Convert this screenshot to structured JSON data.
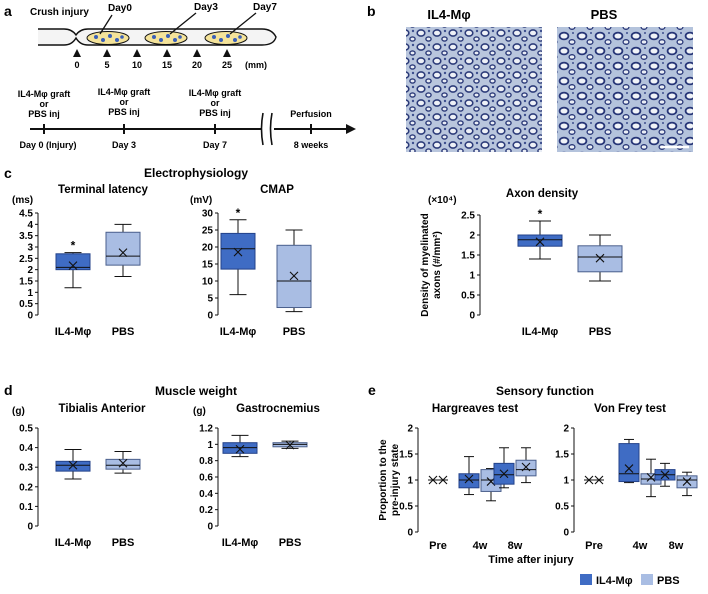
{
  "colors": {
    "il4": "#3f6cc4",
    "il4_edge": "#23428a",
    "pbs": "#a9bde3",
    "pbs_edge": "#4a5f8c",
    "axon_bg": "#b7c6de",
    "axon_ring": "#2f3f7e"
  },
  "panels": {
    "a": "a",
    "b": "b",
    "c": "c",
    "d": "d",
    "e": "e"
  },
  "timeline": {
    "crush_label": "Crush injury",
    "days": [
      "Day0",
      "Day3",
      "Day7"
    ],
    "mm_ticks": [
      "0",
      "5",
      "10",
      "15",
      "20",
      "25"
    ],
    "mm_unit": "(mm)",
    "events": [
      {
        "lines": [
          "IL4-Mφ graft",
          "or",
          "PBS inj"
        ],
        "day": "Day 0 (Injury)"
      },
      {
        "lines": [
          "IL4-Mφ graft",
          "or",
          "PBS inj"
        ],
        "day": "Day 3"
      },
      {
        "lines": [
          "IL4-Mφ graft",
          "or",
          "PBS inj"
        ],
        "day": "Day 7"
      },
      {
        "lines": [
          "Perfusion"
        ],
        "day": "8 weeks"
      }
    ]
  },
  "micro": {
    "left_title": "IL4-Mφ",
    "right_title": "PBS"
  },
  "sections": {
    "electro": "Electrophysiology",
    "muscle": "Muscle weight",
    "sensory": "Sensory function"
  },
  "legend": {
    "il4": "IL4-Mφ",
    "pbs": "PBS"
  },
  "chart_data": [
    {
      "id": "terminal_latency",
      "type": "box",
      "title": "Terminal latency",
      "ylabel": "(ms)",
      "ylim": [
        0,
        4.5
      ],
      "yticks": [
        "0",
        "0.5",
        "1",
        "1.5",
        "2",
        "2.5",
        "3",
        "3.5",
        "4",
        "4.5"
      ],
      "tick_values": [
        0,
        0.5,
        1,
        1.5,
        2,
        2.5,
        3,
        3.5,
        4,
        4.5
      ],
      "categories": [
        "IL4-Mφ",
        "PBS"
      ],
      "boxes": [
        {
          "group": "IL4-Mφ",
          "min": 1.2,
          "q1": 2.0,
          "median": 2.1,
          "q3": 2.7,
          "max": 2.75,
          "mean": 2.18,
          "sig": "*"
        },
        {
          "group": "PBS",
          "min": 1.7,
          "q1": 2.2,
          "median": 2.6,
          "q3": 3.65,
          "max": 4.0,
          "mean": 2.75
        }
      ]
    },
    {
      "id": "cmap",
      "type": "box",
      "title": "CMAP",
      "ylabel": "(mV)",
      "ylim": [
        0,
        30
      ],
      "yticks": [
        "0",
        "5",
        "10",
        "15",
        "20",
        "25",
        "30"
      ],
      "tick_values": [
        0,
        5,
        10,
        15,
        20,
        25,
        30
      ],
      "categories": [
        "IL4-Mφ",
        "PBS"
      ],
      "boxes": [
        {
          "group": "IL4-Mφ",
          "min": 6,
          "q1": 13.5,
          "median": 19.5,
          "q3": 24,
          "max": 28,
          "mean": 18.5,
          "sig": "*"
        },
        {
          "group": "PBS",
          "min": 1,
          "q1": 2.2,
          "median": 10,
          "q3": 20.5,
          "max": 25,
          "mean": 11.5
        }
      ]
    },
    {
      "id": "axon_density",
      "type": "box",
      "title": "Axon density",
      "ylabel": "Density of myelinated axons (#/mm²)",
      "ylabel_lines": [
        "Density of myelinated",
        "axons (#/mm²)"
      ],
      "scale": "(×10⁴)",
      "ylim": [
        0,
        2.5
      ],
      "yticks": [
        "0",
        "0.5",
        "1",
        "1.5",
        "2",
        "2.5"
      ],
      "tick_values": [
        0,
        0.5,
        1,
        1.5,
        2,
        2.5
      ],
      "categories": [
        "IL4-Mφ",
        "PBS"
      ],
      "boxes": [
        {
          "group": "IL4-Mφ",
          "min": 1.4,
          "q1": 1.72,
          "median": 1.88,
          "q3": 2.0,
          "max": 2.35,
          "mean": 1.83,
          "sig": "*"
        },
        {
          "group": "PBS",
          "min": 0.85,
          "q1": 1.08,
          "median": 1.45,
          "q3": 1.73,
          "max": 2.0,
          "mean": 1.42
        }
      ]
    },
    {
      "id": "tibialis",
      "type": "box",
      "title": "Tibialis Anterior",
      "ylabel": "(g)",
      "ylim": [
        0,
        0.5
      ],
      "yticks": [
        "0",
        "0.1",
        "0.2",
        "0.3",
        "0.4",
        "0.5"
      ],
      "tick_values": [
        0,
        0.1,
        0.2,
        0.3,
        0.4,
        0.5
      ],
      "categories": [
        "IL4-Mφ",
        "PBS"
      ],
      "boxes": [
        {
          "group": "IL4-Mφ",
          "min": 0.24,
          "q1": 0.28,
          "median": 0.31,
          "q3": 0.33,
          "max": 0.39,
          "mean": 0.31
        },
        {
          "group": "PBS",
          "min": 0.27,
          "q1": 0.29,
          "median": 0.31,
          "q3": 0.34,
          "max": 0.38,
          "mean": 0.32
        }
      ]
    },
    {
      "id": "gastrocnemius",
      "type": "box",
      "title": "Gastrocnemius",
      "ylabel": "(g)",
      "ylim": [
        0,
        1.2
      ],
      "yticks": [
        "0",
        "0.2",
        "0.4",
        "0.6",
        "0.8",
        "1",
        "1.2"
      ],
      "tick_values": [
        0,
        0.2,
        0.4,
        0.6,
        0.8,
        1,
        1.2
      ],
      "categories": [
        "IL4-Mφ",
        "PBS"
      ],
      "boxes": [
        {
          "group": "IL4-Mφ",
          "min": 0.85,
          "q1": 0.89,
          "median": 0.96,
          "q3": 1.02,
          "max": 1.11,
          "mean": 0.94
        },
        {
          "group": "PBS",
          "min": 0.95,
          "q1": 0.97,
          "median": 1.0,
          "q3": 1.02,
          "max": 1.04,
          "mean": 0.99
        }
      ]
    },
    {
      "id": "hargreaves",
      "type": "box",
      "title": "Hargreaves test",
      "ylabel": "Proportion to the pre-injury state",
      "ylabel_lines": [
        "Proportion to the",
        "pre-injury state"
      ],
      "ylim": [
        0,
        2
      ],
      "yticks": [
        "0",
        "0.5",
        "1",
        "1.5",
        "2"
      ],
      "tick_values": [
        0,
        0.5,
        1,
        1.5,
        2
      ],
      "categories": [
        "Pre",
        "4w",
        "8w"
      ],
      "xlabel": "Time after injury",
      "boxes": [
        {
          "group": "Pre",
          "series": "IL4-Mφ",
          "flat": 1,
          "mean": 1
        },
        {
          "group": "Pre",
          "series": "PBS",
          "flat": 1,
          "mean": 1
        },
        {
          "group": "4w",
          "series": "IL4-Mφ",
          "min": 0.72,
          "q1": 0.85,
          "median": 1.0,
          "q3": 1.12,
          "max": 1.45,
          "mean": 1.02
        },
        {
          "group": "4w",
          "series": "PBS",
          "min": 0.6,
          "q1": 0.78,
          "median": 1.0,
          "q3": 1.2,
          "max": 1.22,
          "mean": 0.97
        },
        {
          "group": "8w",
          "series": "IL4-Mφ",
          "min": 0.85,
          "q1": 0.92,
          "median": 1.1,
          "q3": 1.32,
          "max": 1.62,
          "mean": 1.12
        },
        {
          "group": "8w",
          "series": "PBS",
          "min": 0.95,
          "q1": 1.08,
          "median": 1.2,
          "q3": 1.38,
          "max": 1.62,
          "mean": 1.25
        }
      ]
    },
    {
      "id": "vonfrey",
      "type": "box",
      "title": "Von Frey test",
      "ylim": [
        0,
        2
      ],
      "yticks": [
        "0",
        "0.5",
        "1",
        "1.5",
        "2"
      ],
      "tick_values": [
        0,
        0.5,
        1,
        1.5,
        2
      ],
      "categories": [
        "Pre",
        "4w",
        "8w"
      ],
      "boxes": [
        {
          "group": "Pre",
          "series": "IL4-Mφ",
          "flat": 1,
          "mean": 1
        },
        {
          "group": "Pre",
          "series": "PBS",
          "flat": 1,
          "mean": 1
        },
        {
          "group": "4w",
          "series": "IL4-Mφ",
          "min": 0.95,
          "q1": 0.97,
          "median": 1.12,
          "q3": 1.7,
          "max": 1.78,
          "mean": 1.22
        },
        {
          "group": "4w",
          "series": "PBS",
          "min": 0.68,
          "q1": 0.92,
          "median": 1.02,
          "q3": 1.12,
          "max": 1.4,
          "mean": 1.05
        },
        {
          "group": "8w",
          "series": "IL4-Mφ",
          "min": 0.88,
          "q1": 1.0,
          "median": 1.1,
          "q3": 1.2,
          "max": 1.32,
          "mean": 1.1
        },
        {
          "group": "8w",
          "series": "PBS",
          "min": 0.7,
          "q1": 0.85,
          "median": 1.0,
          "q3": 1.08,
          "max": 1.15,
          "mean": 0.97
        }
      ]
    }
  ]
}
